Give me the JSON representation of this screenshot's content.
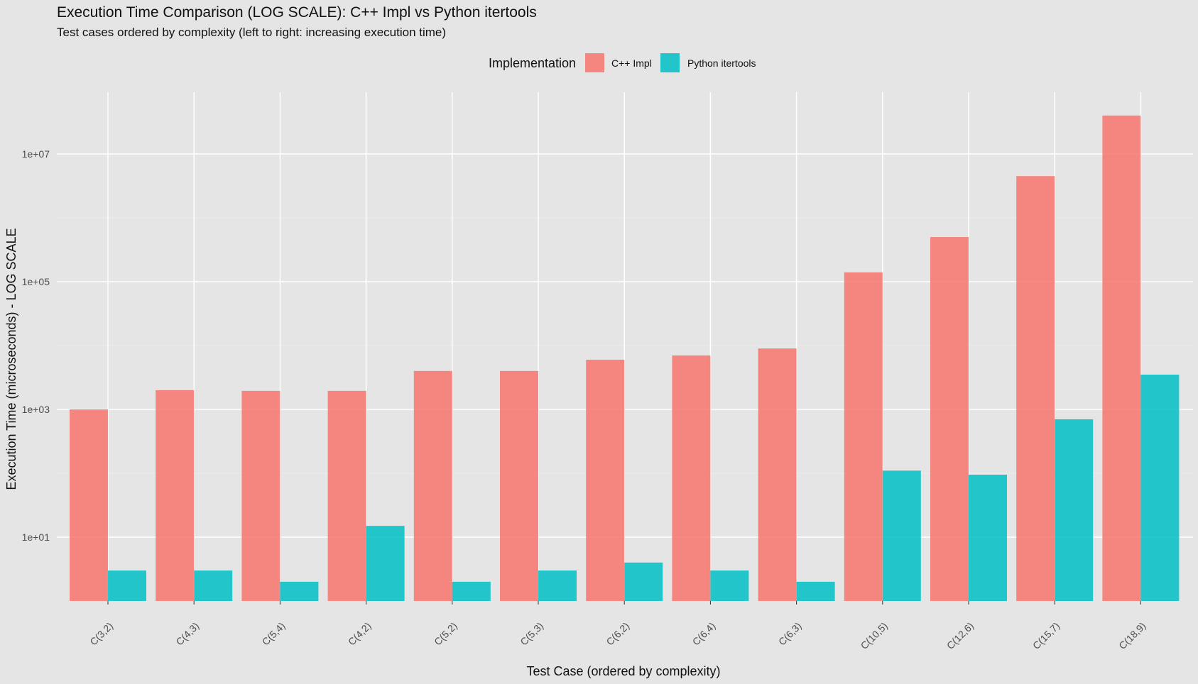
{
  "chart_data": {
    "type": "bar",
    "title": "Execution Time Comparison (LOG SCALE): C++ Impl vs Python itertools",
    "subtitle": "Test cases ordered by complexity (left to right: increasing execution time)",
    "xlabel": "Test Case (ordered by complexity)",
    "ylabel": "Execution Time (microseconds) - LOG SCALE",
    "y_scale": "log10",
    "ylim": [
      1,
      100000000
    ],
    "y_ticks": [
      {
        "value": 10,
        "label": "1e+01"
      },
      {
        "value": 1000,
        "label": "1e+03"
      },
      {
        "value": 100000,
        "label": "1e+05"
      },
      {
        "value": 10000000,
        "label": "1e+07"
      }
    ],
    "grid": true,
    "legend": {
      "title": "Implementation",
      "position": "top"
    },
    "categories": [
      "C(3,2)",
      "C(4,3)",
      "C(5,4)",
      "C(4,2)",
      "C(5,2)",
      "C(5,3)",
      "C(6,2)",
      "C(6,4)",
      "C(6,3)",
      "C(10,5)",
      "C(12,6)",
      "C(15,7)",
      "C(18,9)"
    ],
    "series": [
      {
        "name": "C++ Impl",
        "color": "#f8766d",
        "values": [
          1000,
          2000,
          1950,
          1950,
          4000,
          4000,
          6000,
          7000,
          9000,
          140000,
          500000,
          4500000,
          40000000
        ]
      },
      {
        "name": "Python itertools",
        "color": "#00bfc4",
        "values": [
          3,
          3,
          2,
          15,
          2,
          3,
          4,
          3,
          2,
          110,
          95,
          700,
          3500
        ]
      }
    ]
  }
}
